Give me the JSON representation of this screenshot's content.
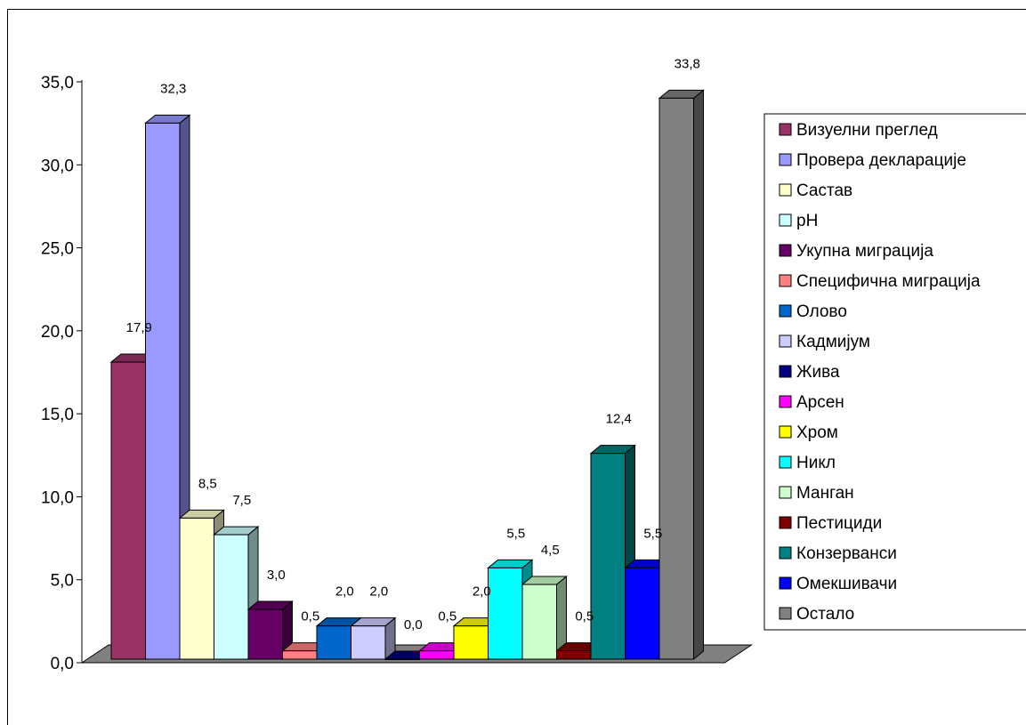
{
  "chart_data": {
    "type": "bar",
    "title": "",
    "xlabel": "",
    "ylabel": "",
    "ylim": [
      0,
      35
    ],
    "yticks": [
      "0,0",
      "5,0",
      "10,0",
      "15,0",
      "20,0",
      "25,0",
      "30,0",
      "35,0"
    ],
    "legend_position": "right",
    "grid": false,
    "series": [
      {
        "name": "Визуелни преглед",
        "value": 17.9,
        "label": "17,9",
        "color": "#993366"
      },
      {
        "name": "Провера декларације",
        "value": 32.3,
        "label": "32,3",
        "color": "#9999FF"
      },
      {
        "name": "Састав",
        "value": 8.5,
        "label": "8,5",
        "color": "#FFFFCC"
      },
      {
        "name": "pH",
        "value": 7.5,
        "label": "7,5",
        "color": "#CCFFFF"
      },
      {
        "name": "Укупна миграција",
        "value": 3.0,
        "label": "3,0",
        "color": "#660066"
      },
      {
        "name": "Специфична миграција",
        "value": 0.5,
        "label": "0,5",
        "color": "#FF8080"
      },
      {
        "name": "Олово",
        "value": 2.0,
        "label": "2,0",
        "color": "#0066CC"
      },
      {
        "name": "Кадмијум",
        "value": 2.0,
        "label": "2,0",
        "color": "#CCCCFF"
      },
      {
        "name": "Жива",
        "value": 0.0,
        "label": "0,0",
        "color": "#000080"
      },
      {
        "name": "Арсен",
        "value": 0.5,
        "label": "0,5",
        "color": "#FF00FF"
      },
      {
        "name": "Хром",
        "value": 2.0,
        "label": "2,0",
        "color": "#FFFF00"
      },
      {
        "name": "Никл",
        "value": 5.5,
        "label": "5,5",
        "color": "#00FFFF"
      },
      {
        "name": "Манган",
        "value": 4.5,
        "label": "4,5",
        "color": "#CCFFCC"
      },
      {
        "name": "Пестициди",
        "value": 0.5,
        "label": "0,5",
        "color": "#800000"
      },
      {
        "name": "Конзерванси",
        "value": 12.4,
        "label": "12,4",
        "color": "#008080"
      },
      {
        "name": "Омекшивачи",
        "value": 5.5,
        "label": "5,5",
        "color": "#0000FF"
      },
      {
        "name": "Остало",
        "value": 33.8,
        "label": "33,8",
        "color": "#808080"
      }
    ]
  }
}
